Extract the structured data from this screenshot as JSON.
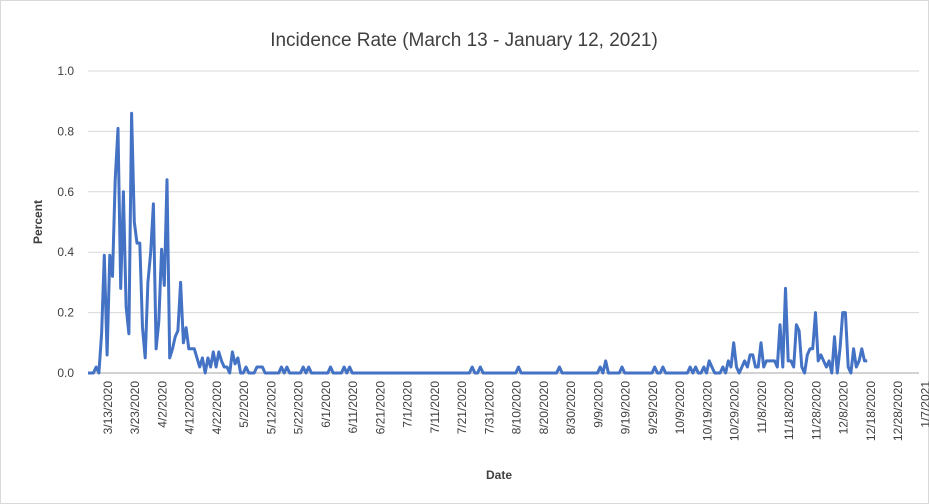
{
  "chart_data": {
    "type": "line",
    "title": "Incidence Rate (March 13 - January 12, 2021)",
    "xlabel": "Date",
    "ylabel": "Percent",
    "ylim": [
      0,
      1.0
    ],
    "yticks": [
      "0.0",
      "0.2",
      "0.4",
      "0.6",
      "0.8",
      "1.0"
    ],
    "x_tick_labels": [
      "3/13/2020",
      "3/23/2020",
      "4/2/2020",
      "4/12/2020",
      "4/22/2020",
      "5/2/2020",
      "5/12/2020",
      "5/22/2020",
      "6/1/2020",
      "6/11/2020",
      "6/21/2020",
      "7/1/2020",
      "7/11/2020",
      "7/21/2020",
      "7/31/2020",
      "8/10/2020",
      "8/20/2020",
      "8/30/2020",
      "9/9/2020",
      "9/19/2020",
      "9/29/2020",
      "10/9/2020",
      "10/19/2020",
      "10/29/2020",
      "11/8/2020",
      "11/18/2020",
      "11/28/2020",
      "12/8/2020",
      "12/18/2020",
      "12/28/2020",
      "1/7/2021"
    ],
    "grid": true,
    "series_color": "#4472c4",
    "series": [
      {
        "values": [
          [
            0,
            0
          ],
          [
            1,
            0
          ],
          [
            2,
            0
          ],
          [
            3,
            0.02
          ],
          [
            4,
            0
          ],
          [
            5,
            0.13
          ],
          [
            6,
            0.39
          ],
          [
            7,
            0.06
          ],
          [
            8,
            0.39
          ],
          [
            9,
            0.32
          ],
          [
            10,
            0.64
          ],
          [
            11,
            0.81
          ],
          [
            12,
            0.28
          ],
          [
            13,
            0.6
          ],
          [
            14,
            0.22
          ],
          [
            15,
            0.13
          ],
          [
            16,
            0.86
          ],
          [
            17,
            0.5
          ],
          [
            18,
            0.43
          ],
          [
            19,
            0.43
          ],
          [
            20,
            0.15
          ],
          [
            21,
            0.05
          ],
          [
            22,
            0.3
          ],
          [
            23,
            0.4
          ],
          [
            24,
            0.56
          ],
          [
            25,
            0.08
          ],
          [
            26,
            0.17
          ],
          [
            27,
            0.41
          ],
          [
            28,
            0.29
          ],
          [
            29,
            0.64
          ],
          [
            30,
            0.05
          ],
          [
            31,
            0.08
          ],
          [
            32,
            0.12
          ],
          [
            33,
            0.14
          ],
          [
            34,
            0.3
          ],
          [
            35,
            0.1
          ],
          [
            36,
            0.15
          ],
          [
            37,
            0.08
          ],
          [
            38,
            0.08
          ],
          [
            39,
            0.08
          ],
          [
            40,
            0.05
          ],
          [
            41,
            0.02
          ],
          [
            42,
            0.05
          ],
          [
            43,
            0
          ],
          [
            44,
            0.05
          ],
          [
            45,
            0.02
          ],
          [
            46,
            0.07
          ],
          [
            47,
            0.02
          ],
          [
            48,
            0.07
          ],
          [
            49,
            0.04
          ],
          [
            50,
            0.02
          ],
          [
            51,
            0.02
          ],
          [
            52,
            0
          ],
          [
            53,
            0.07
          ],
          [
            54,
            0.03
          ],
          [
            55,
            0.05
          ],
          [
            56,
            0
          ],
          [
            57,
            0
          ],
          [
            58,
            0.02
          ],
          [
            59,
            0
          ],
          [
            60,
            0
          ],
          [
            61,
            0
          ],
          [
            62,
            0.02
          ],
          [
            63,
            0.02
          ],
          [
            64,
            0.02
          ],
          [
            65,
            0
          ],
          [
            70,
            0
          ],
          [
            71,
            0.02
          ],
          [
            72,
            0
          ],
          [
            73,
            0.02
          ],
          [
            74,
            0
          ],
          [
            78,
            0
          ],
          [
            79,
            0.02
          ],
          [
            80,
            0
          ],
          [
            81,
            0.02
          ],
          [
            82,
            0
          ],
          [
            88,
            0
          ],
          [
            89,
            0.02
          ],
          [
            90,
            0
          ],
          [
            93,
            0
          ],
          [
            94,
            0.02
          ],
          [
            95,
            0
          ],
          [
            96,
            0.02
          ],
          [
            97,
            0
          ],
          [
            140,
            0
          ],
          [
            141,
            0.02
          ],
          [
            142,
            0
          ],
          [
            143,
            0
          ],
          [
            144,
            0.02
          ],
          [
            145,
            0
          ],
          [
            157,
            0
          ],
          [
            158,
            0.02
          ],
          [
            159,
            0
          ],
          [
            172,
            0
          ],
          [
            173,
            0.02
          ],
          [
            174,
            0
          ],
          [
            187,
            0
          ],
          [
            188,
            0.02
          ],
          [
            189,
            0
          ],
          [
            190,
            0.04
          ],
          [
            191,
            0
          ],
          [
            195,
            0
          ],
          [
            196,
            0.02
          ],
          [
            197,
            0
          ],
          [
            207,
            0
          ],
          [
            208,
            0.02
          ],
          [
            209,
            0
          ],
          [
            210,
            0
          ],
          [
            211,
            0.02
          ],
          [
            212,
            0
          ],
          [
            220,
            0
          ],
          [
            221,
            0.02
          ],
          [
            222,
            0
          ],
          [
            223,
            0.02
          ],
          [
            224,
            0
          ],
          [
            225,
            0
          ],
          [
            226,
            0.02
          ],
          [
            227,
            0
          ],
          [
            228,
            0.04
          ],
          [
            229,
            0.02
          ],
          [
            230,
            0
          ],
          [
            232,
            0
          ],
          [
            233,
            0.02
          ],
          [
            234,
            0
          ],
          [
            235,
            0.04
          ],
          [
            236,
            0.02
          ],
          [
            237,
            0.1
          ],
          [
            238,
            0.02
          ],
          [
            239,
            0
          ],
          [
            240,
            0.02
          ],
          [
            241,
            0.04
          ],
          [
            242,
            0.02
          ],
          [
            243,
            0.06
          ],
          [
            244,
            0.06
          ],
          [
            245,
            0.02
          ],
          [
            246,
            0.02
          ],
          [
            247,
            0.1
          ],
          [
            248,
            0.02
          ],
          [
            249,
            0.04
          ],
          [
            250,
            0.04
          ],
          [
            251,
            0.04
          ],
          [
            252,
            0.04
          ],
          [
            253,
            0.02
          ],
          [
            254,
            0.16
          ],
          [
            255,
            0.02
          ],
          [
            256,
            0.28
          ],
          [
            257,
            0.04
          ],
          [
            258,
            0.04
          ],
          [
            259,
            0.02
          ],
          [
            260,
            0.16
          ],
          [
            261,
            0.14
          ],
          [
            262,
            0.02
          ],
          [
            263,
            0
          ],
          [
            264,
            0.06
          ],
          [
            265,
            0.08
          ],
          [
            266,
            0.08
          ],
          [
            267,
            0.2
          ],
          [
            268,
            0.04
          ],
          [
            269,
            0.06
          ],
          [
            270,
            0.04
          ],
          [
            271,
            0.02
          ],
          [
            272,
            0.04
          ],
          [
            273,
            0
          ],
          [
            274,
            0.12
          ],
          [
            275,
            0
          ],
          [
            276,
            0.08
          ],
          [
            277,
            0.2
          ],
          [
            278,
            0.2
          ],
          [
            279,
            0.02
          ],
          [
            280,
            0
          ],
          [
            281,
            0.08
          ],
          [
            282,
            0.02
          ],
          [
            283,
            0.04
          ],
          [
            284,
            0.08
          ],
          [
            285,
            0.04
          ],
          [
            286,
            0.04
          ]
        ]
      }
    ]
  }
}
